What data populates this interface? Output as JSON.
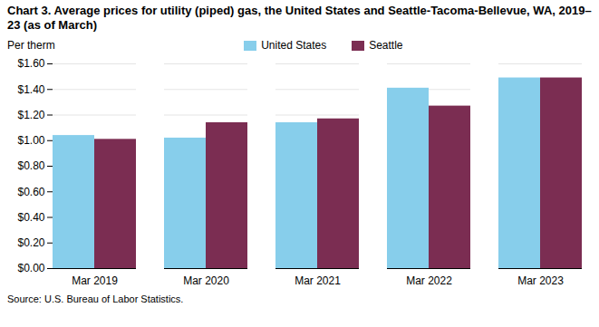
{
  "chart_data": {
    "type": "bar",
    "title": "Chart 3. Average prices for utility (piped) gas, the United States and Seattle-Tacoma-Bellevue, WA, 2019–23 (as of March)",
    "y_label": "Per therm",
    "annotations": [
      "Source: U.S. Bureau of Labor Statistics."
    ],
    "categories": [
      "Mar 2019",
      "Mar 2020",
      "Mar 2021",
      "Mar 2022",
      "Mar 2023"
    ],
    "series": [
      {
        "name": "United States",
        "color": "#87CEEB",
        "values": [
          1.04,
          1.02,
          1.14,
          1.41,
          1.49
        ]
      },
      {
        "name": "Seattle",
        "color": "#7B2D52",
        "values": [
          1.01,
          1.14,
          1.17,
          1.27,
          1.49
        ]
      }
    ],
    "ylim": [
      0.0,
      1.6
    ],
    "yticks": [
      {
        "value": 0.0,
        "label": "$0.00"
      },
      {
        "value": 0.2,
        "label": "$0.20"
      },
      {
        "value": 0.4,
        "label": "$0.40"
      },
      {
        "value": 0.6,
        "label": "$0.60"
      },
      {
        "value": 0.8,
        "label": "$0.80"
      },
      {
        "value": 1.0,
        "label": "$1.00"
      },
      {
        "value": 1.2,
        "label": "$1.20"
      },
      {
        "value": 1.4,
        "label": "$1.40"
      },
      {
        "value": 1.6,
        "label": "$1.60"
      }
    ],
    "grid": true,
    "legend": "top"
  }
}
